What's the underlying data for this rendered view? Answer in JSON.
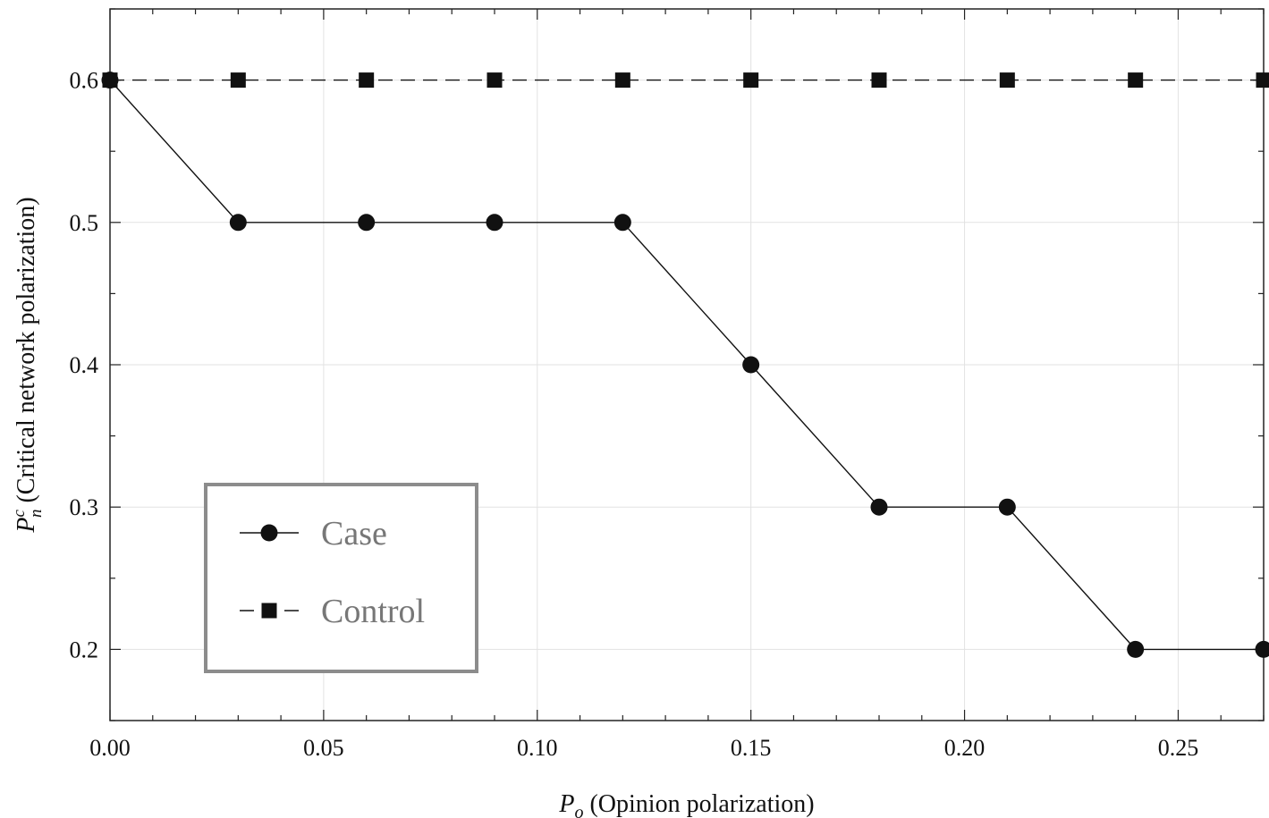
{
  "chart_data": {
    "type": "line",
    "x": [
      0.0,
      0.03,
      0.06,
      0.09,
      0.12,
      0.15,
      0.18,
      0.21,
      0.24,
      0.27
    ],
    "series": [
      {
        "name": "Case",
        "values": [
          0.6,
          0.5,
          0.5,
          0.5,
          0.5,
          0.4,
          0.3,
          0.3,
          0.2,
          0.2
        ],
        "marker": "circle",
        "line_style": "solid"
      },
      {
        "name": "Control",
        "values": [
          0.6,
          0.6,
          0.6,
          0.6,
          0.6,
          0.6,
          0.6,
          0.6,
          0.6,
          0.6
        ],
        "marker": "square",
        "line_style": "dashed"
      }
    ],
    "xlabel": {
      "symbol": "P",
      "subscript": "o",
      "text": " (Opinion polarization)"
    },
    "ylabel": {
      "symbol": "P",
      "superscript": "c",
      "subscript": "n",
      "text": " (Critical network polarization)"
    },
    "xlim": [
      0.0,
      0.27
    ],
    "ylim": [
      0.15,
      0.65
    ],
    "xticks": [
      0.0,
      0.05,
      0.1,
      0.15,
      0.2,
      0.25
    ],
    "xtick_labels": [
      "0.00",
      "0.05",
      "0.10",
      "0.15",
      "0.20",
      "0.25"
    ],
    "yticks": [
      0.2,
      0.3,
      0.4,
      0.5,
      0.6
    ],
    "ytick_labels": [
      "0.2",
      "0.3",
      "0.4",
      "0.5",
      "0.6"
    ],
    "grid": true,
    "legend_position": "lower-left",
    "colors": {
      "line": "#111111",
      "grid": "#e2e2e2",
      "legend_border": "#8c8c8c",
      "legend_text": "#777777"
    }
  }
}
